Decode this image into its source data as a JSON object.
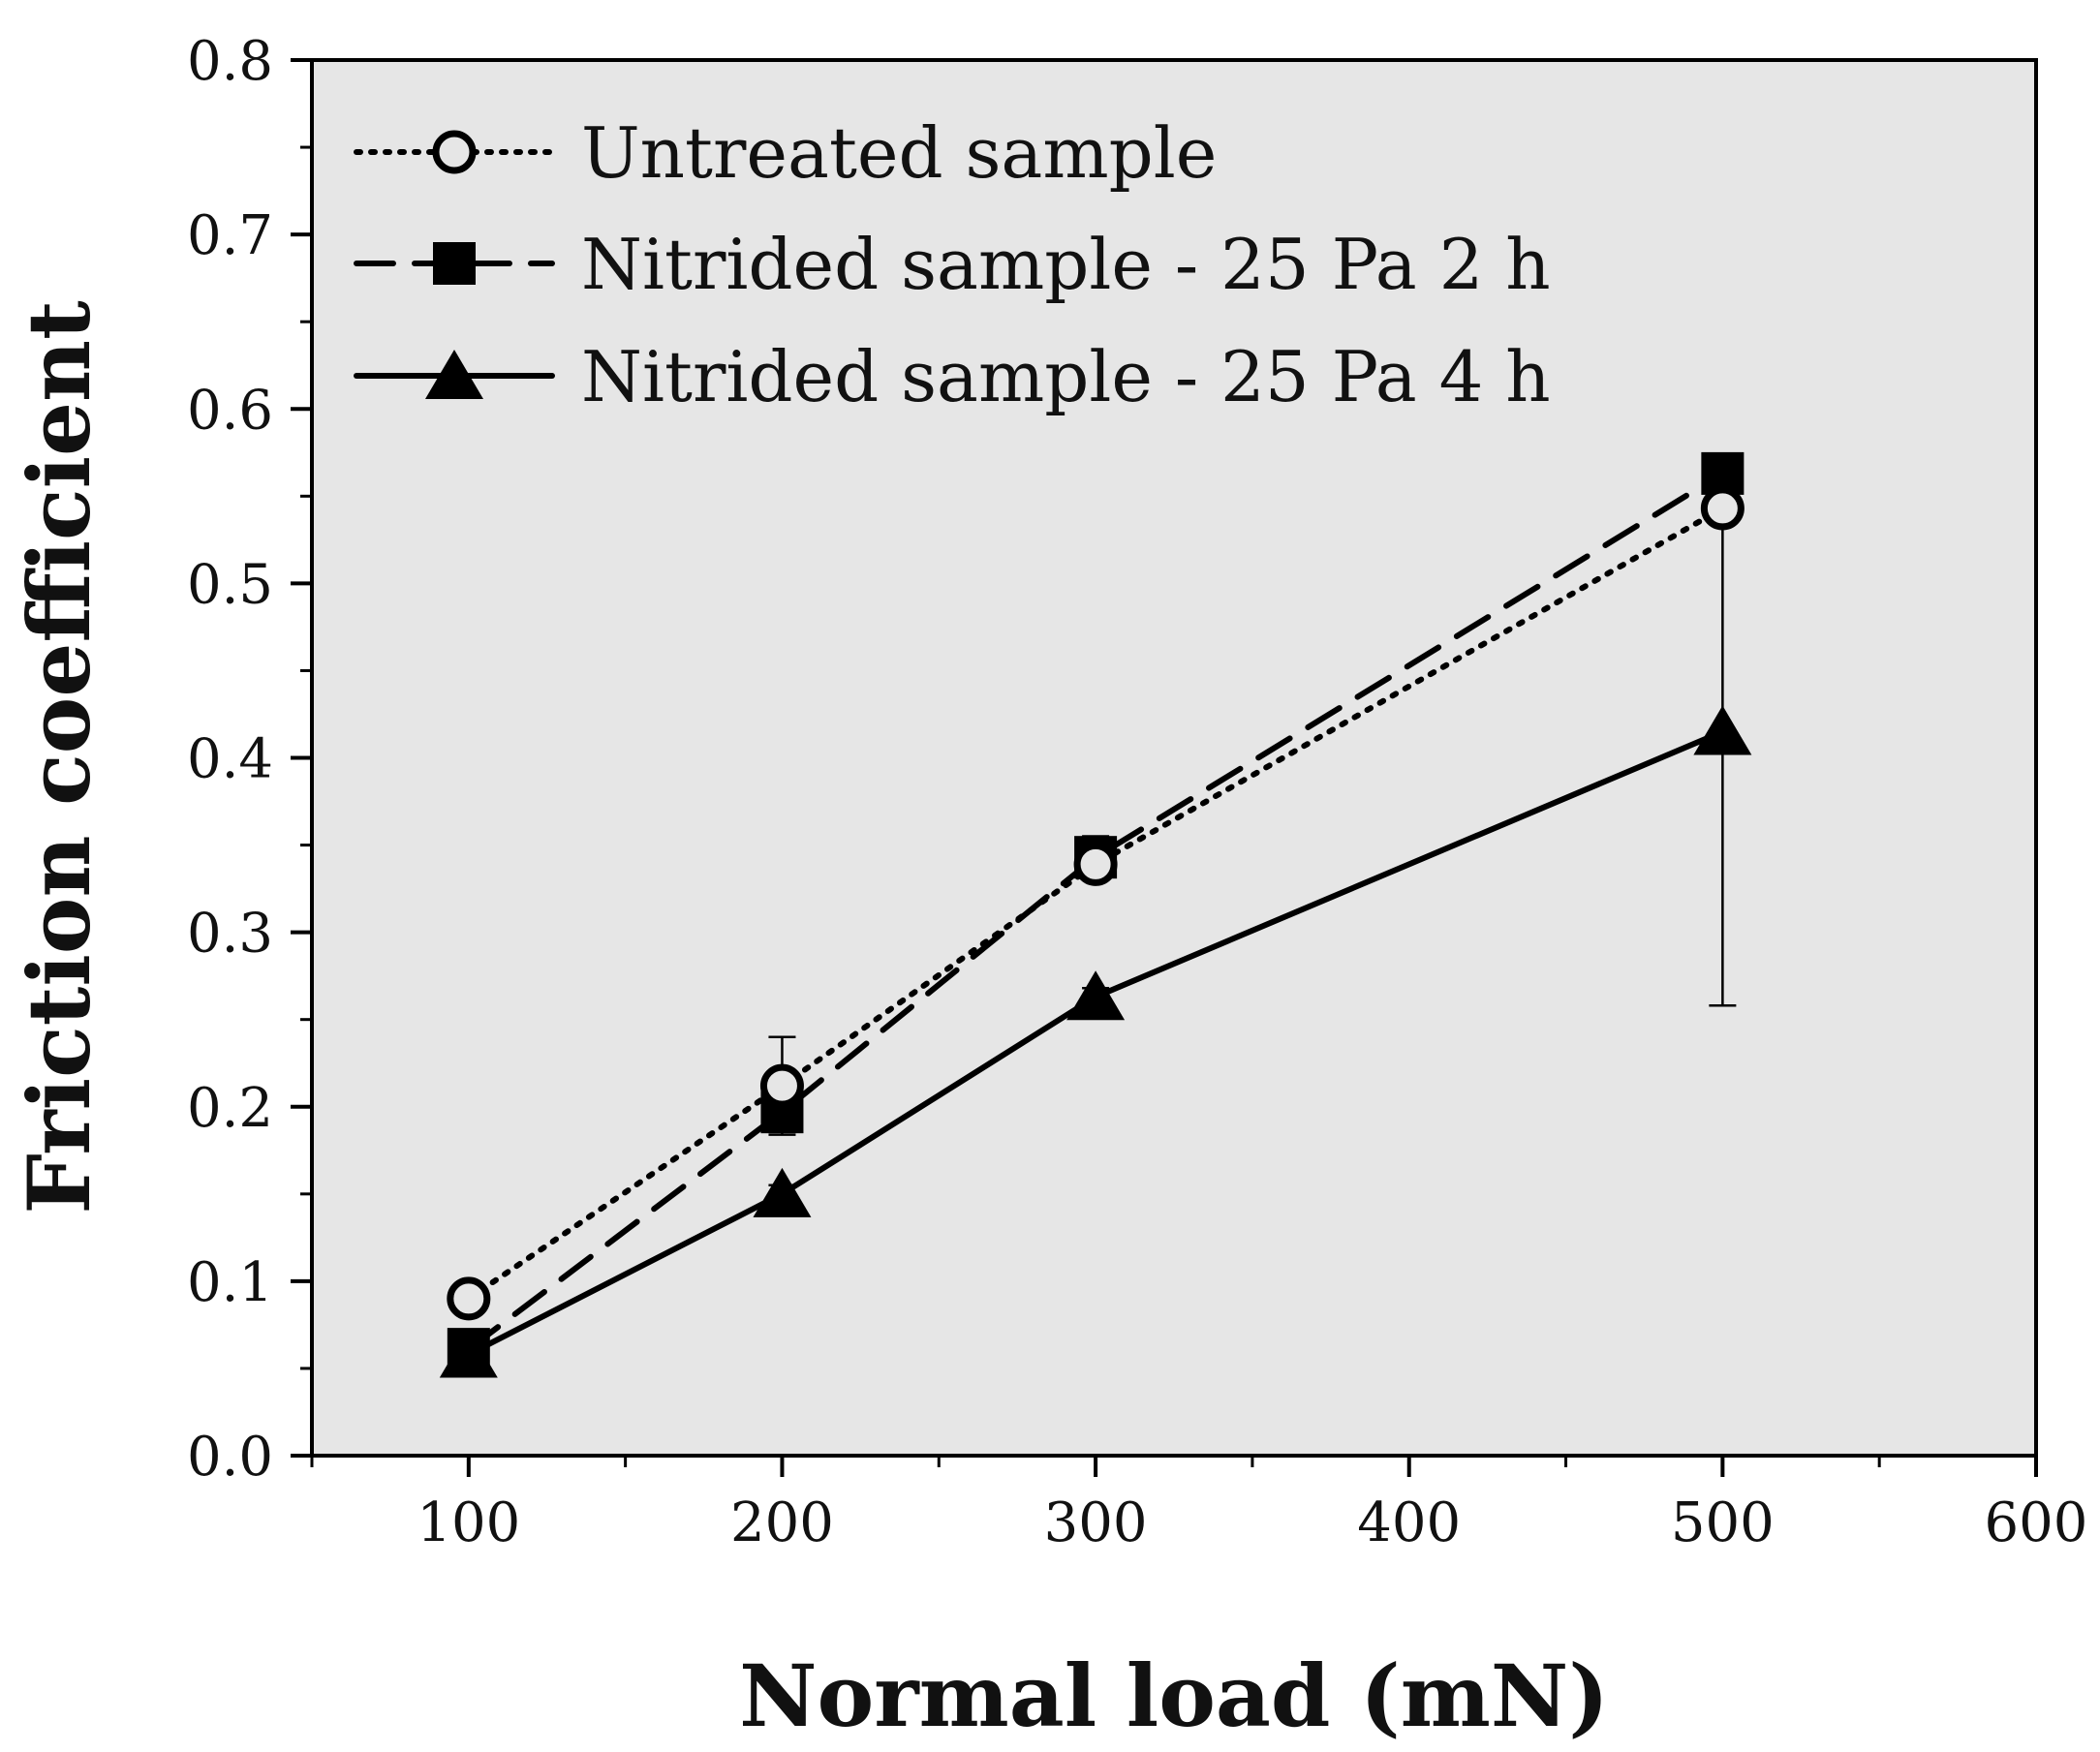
{
  "chart_data": {
    "type": "line",
    "title": "",
    "xlabel": "Normal load (mN)",
    "ylabel": "Friction coefficient",
    "xlim": [
      50,
      600
    ],
    "ylim": [
      0.0,
      0.8
    ],
    "xticks": [
      100,
      200,
      300,
      400,
      500,
      600
    ],
    "xtick_labels": [
      "100",
      "200",
      "300",
      "400",
      "500",
      "600"
    ],
    "xminor": [
      50,
      150,
      250,
      350,
      450,
      550
    ],
    "yticks": [
      0.0,
      0.1,
      0.2,
      0.3,
      0.4,
      0.5,
      0.6,
      0.7,
      0.8
    ],
    "ytick_labels": [
      "0.0",
      "0.1",
      "0.2",
      "0.3",
      "0.4",
      "0.5",
      "0.6",
      "0.7",
      "0.8"
    ],
    "yminor": [
      0.05,
      0.15,
      0.25,
      0.35,
      0.45,
      0.55,
      0.65,
      0.75
    ],
    "grid": false,
    "background": "#e6e6e6",
    "legend_position": "top-left",
    "series": [
      {
        "name": "Untreated sample",
        "line_style": "dotted",
        "marker": "open-circle",
        "x": [
          100,
          200,
          300,
          500
        ],
        "y": [
          0.09,
          0.212,
          0.339,
          0.543
        ],
        "err": [
          0.005,
          0.028,
          0.005,
          0.0
        ]
      },
      {
        "name": "Nitrided sample - 25 Pa 2 h",
        "line_style": "dashed",
        "marker": "filled-square",
        "x": [
          100,
          200,
          300,
          500
        ],
        "y": [
          0.061,
          0.197,
          0.343,
          0.563
        ],
        "err": [
          0.005,
          0.01,
          0.012,
          0.005
        ]
      },
      {
        "name": "Nitrided sample - 25 Pa 4 h",
        "line_style": "solid",
        "marker": "filled-triangle",
        "x": [
          100,
          200,
          300,
          500
        ],
        "y": [
          0.058,
          0.15,
          0.263,
          0.415
        ],
        "err": [
          0.003,
          0.005,
          0.005,
          0.157
        ]
      }
    ]
  }
}
